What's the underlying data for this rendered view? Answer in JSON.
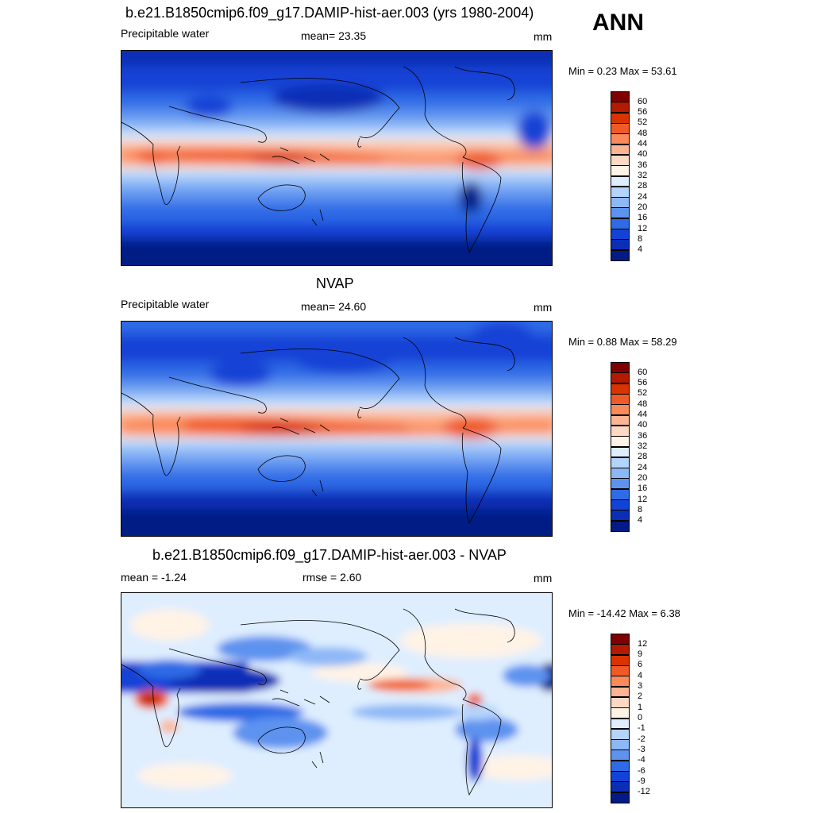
{
  "season": "ANN",
  "panels": [
    {
      "title": "b.e21.B1850cmip6.f09_g17.DAMIP-hist-aer.003 (yrs 1980-2004)",
      "left_label": "Precipitable water",
      "center_label": "mean=  23.35",
      "units": "mm",
      "minmax": "Min =   0.23 Max =  53.61",
      "colorbar": {
        "labels": [
          "60",
          "56",
          "52",
          "48",
          "44",
          "40",
          "36",
          "32",
          "28",
          "24",
          "20",
          "16",
          "12",
          "8",
          "4"
        ],
        "colors": [
          "#7f0000",
          "#b31a00",
          "#d93300",
          "#f05a28",
          "#fa8a5a",
          "#fcb493",
          "#fdd9c4",
          "#fff3e6",
          "#deeeff",
          "#b5d4fb",
          "#8db8f6",
          "#5d93ef",
          "#2f6be6",
          "#1242d6",
          "#0a2eb5",
          "#041b85"
        ]
      }
    },
    {
      "title": "NVAP",
      "left_label": "Precipitable water",
      "center_label": "mean=  24.60",
      "units": "mm",
      "minmax": "Min =   0.88 Max =  58.29",
      "colorbar": {
        "labels": [
          "60",
          "56",
          "52",
          "48",
          "44",
          "40",
          "36",
          "32",
          "28",
          "24",
          "20",
          "16",
          "12",
          "8",
          "4"
        ],
        "colors": [
          "#7f0000",
          "#b31a00",
          "#d93300",
          "#f05a28",
          "#fa8a5a",
          "#fcb493",
          "#fdd9c4",
          "#fff3e6",
          "#deeeff",
          "#b5d4fb",
          "#8db8f6",
          "#5d93ef",
          "#2f6be6",
          "#1242d6",
          "#0a2eb5",
          "#041b85"
        ]
      }
    },
    {
      "title": "b.e21.B1850cmip6.f09_g17.DAMIP-hist-aer.003 - NVAP",
      "left_label": "mean =  -1.24",
      "center_label": "rmse =   2.60",
      "units": "mm",
      "minmax": "Min = -14.42 Max =   6.38",
      "colorbar": {
        "labels": [
          "12",
          "9",
          "6",
          "4",
          "3",
          "2",
          "1",
          "0",
          "-1",
          "-2",
          "-3",
          "-4",
          "-6",
          "-9",
          "-12"
        ],
        "colors": [
          "#7f0000",
          "#b31a00",
          "#d93300",
          "#f05a28",
          "#fa8a5a",
          "#fcb493",
          "#fdd9c4",
          "#fff3e6",
          "#deeeff",
          "#b5d4fb",
          "#8db8f6",
          "#5d93ef",
          "#2f6be6",
          "#1242d6",
          "#0a2eb5",
          "#041b85"
        ]
      }
    }
  ]
}
